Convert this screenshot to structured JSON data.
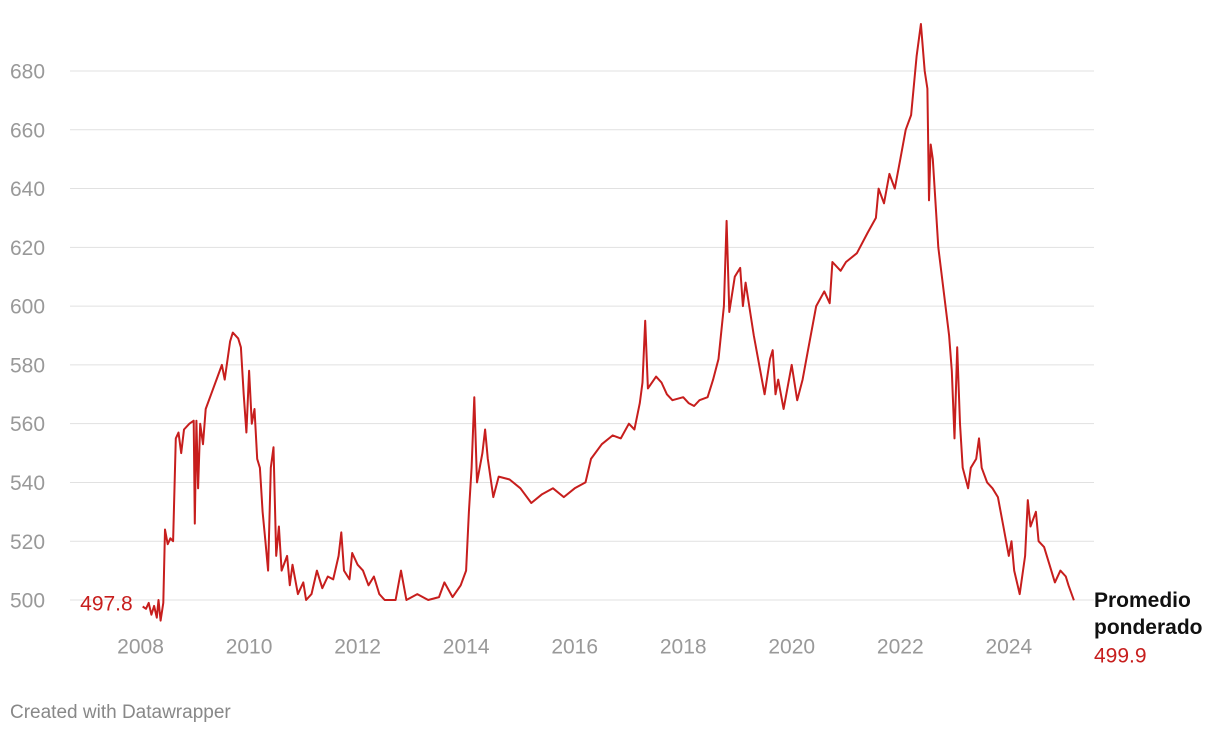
{
  "chart_data": {
    "type": "line",
    "source": "Created with Datawrapper",
    "xlim": [
      2006.7,
      2025.57
    ],
    "ylim": [
      493,
      697
    ],
    "xticks": [
      2008,
      2010,
      2012,
      2014,
      2016,
      2018,
      2020,
      2022,
      2024
    ],
    "yticks": [
      500,
      520,
      540,
      560,
      580,
      600,
      620,
      640,
      660,
      680
    ],
    "grid": true,
    "x": [
      2008.04,
      2008.1,
      2008.15,
      2008.2,
      2008.25,
      2008.3,
      2008.33,
      2008.37,
      2008.42,
      2008.45,
      2008.5,
      2008.55,
      2008.6,
      2008.65,
      2008.7,
      2008.75,
      2008.8,
      2008.9,
      2008.98,
      2009.0,
      2009.03,
      2009.06,
      2009.1,
      2009.15,
      2009.2,
      2009.3,
      2009.4,
      2009.5,
      2009.55,
      2009.65,
      2009.7,
      2009.8,
      2009.85,
      2009.9,
      2009.95,
      2010.0,
      2010.05,
      2010.1,
      2010.15,
      2010.2,
      2010.25,
      2010.3,
      2010.35,
      2010.4,
      2010.45,
      2010.5,
      2010.55,
      2010.6,
      2010.7,
      2010.75,
      2010.8,
      2010.9,
      2011.0,
      2011.05,
      2011.15,
      2011.25,
      2011.35,
      2011.45,
      2011.55,
      2011.65,
      2011.7,
      2011.75,
      2011.85,
      2011.9,
      2012.0,
      2012.1,
      2012.2,
      2012.3,
      2012.4,
      2012.5,
      2012.7,
      2012.8,
      2012.9,
      2013.1,
      2013.3,
      2013.5,
      2013.6,
      2013.75,
      2013.9,
      2014.0,
      2014.05,
      2014.1,
      2014.15,
      2014.2,
      2014.3,
      2014.35,
      2014.4,
      2014.5,
      2014.6,
      2014.8,
      2015.0,
      2015.2,
      2015.4,
      2015.6,
      2015.8,
      2016.0,
      2016.2,
      2016.3,
      2016.5,
      2016.7,
      2016.85,
      2017.0,
      2017.1,
      2017.2,
      2017.25,
      2017.3,
      2017.35,
      2017.5,
      2017.6,
      2017.7,
      2017.8,
      2018.0,
      2018.1,
      2018.2,
      2018.3,
      2018.45,
      2018.55,
      2018.65,
      2018.75,
      2018.8,
      2018.85,
      2018.95,
      2019.05,
      2019.1,
      2019.15,
      2019.3,
      2019.4,
      2019.5,
      2019.6,
      2019.65,
      2019.7,
      2019.75,
      2019.85,
      2020.0,
      2020.1,
      2020.2,
      2020.3,
      2020.45,
      2020.6,
      2020.7,
      2020.75,
      2020.9,
      2021.0,
      2021.2,
      2021.4,
      2021.55,
      2021.6,
      2021.7,
      2021.8,
      2021.9,
      2022.0,
      2022.1,
      2022.2,
      2022.3,
      2022.38,
      2022.45,
      2022.5,
      2022.53,
      2022.56,
      2022.6,
      2022.7,
      2022.8,
      2022.9,
      2022.95,
      2023.0,
      2023.05,
      2023.1,
      2023.15,
      2023.25,
      2023.3,
      2023.4,
      2023.45,
      2023.5,
      2023.6,
      2023.7,
      2023.8,
      2023.9,
      2024.0,
      2024.05,
      2024.1,
      2024.2,
      2024.3,
      2024.35,
      2024.4,
      2024.5,
      2024.55,
      2024.65,
      2024.75,
      2024.85,
      2024.95,
      2025.05,
      2025.1,
      2025.2
    ],
    "series": [
      {
        "name": "Promedio ponderado",
        "color": "#c71e1d",
        "values": [
          497.8,
          497,
          499,
          495,
          498,
          494,
          500,
          493,
          499,
          524,
          519,
          521,
          520,
          555,
          557,
          550,
          558,
          560,
          561,
          526,
          561,
          538,
          560,
          553,
          565,
          570,
          575,
          580,
          575,
          588,
          591,
          589,
          586,
          570,
          557,
          578,
          560,
          565,
          548,
          545,
          530,
          520,
          510,
          545,
          552,
          515,
          525,
          510,
          515,
          505,
          512,
          502,
          506,
          500,
          502,
          510,
          504,
          508,
          507,
          515,
          523,
          510,
          507,
          516,
          512,
          510,
          505,
          508,
          502,
          500,
          500,
          510,
          500,
          502,
          500,
          501,
          506,
          501,
          505,
          510,
          530,
          545,
          569,
          540,
          550,
          558,
          548,
          535,
          542,
          541,
          538,
          533,
          536,
          538,
          535,
          538,
          540,
          548,
          553,
          556,
          555,
          560,
          558,
          567,
          574,
          595,
          572,
          576,
          574,
          570,
          568,
          569,
          567,
          566,
          568,
          569,
          575,
          582,
          600,
          629,
          598,
          610,
          613,
          600,
          608,
          590,
          580,
          570,
          582,
          585,
          570,
          575,
          565,
          580,
          568,
          575,
          585,
          600,
          605,
          601,
          615,
          612,
          615,
          618,
          625,
          630,
          640,
          635,
          645,
          640,
          650,
          660,
          665,
          685,
          696,
          680,
          674,
          636,
          655,
          650,
          620,
          605,
          590,
          578,
          555,
          586,
          560,
          545,
          538,
          545,
          548,
          555,
          545,
          540,
          538,
          535,
          525,
          515,
          520,
          510,
          502,
          515,
          534,
          525,
          530,
          520,
          518,
          512,
          506,
          510,
          508,
          505,
          499.9
        ]
      }
    ]
  }
}
